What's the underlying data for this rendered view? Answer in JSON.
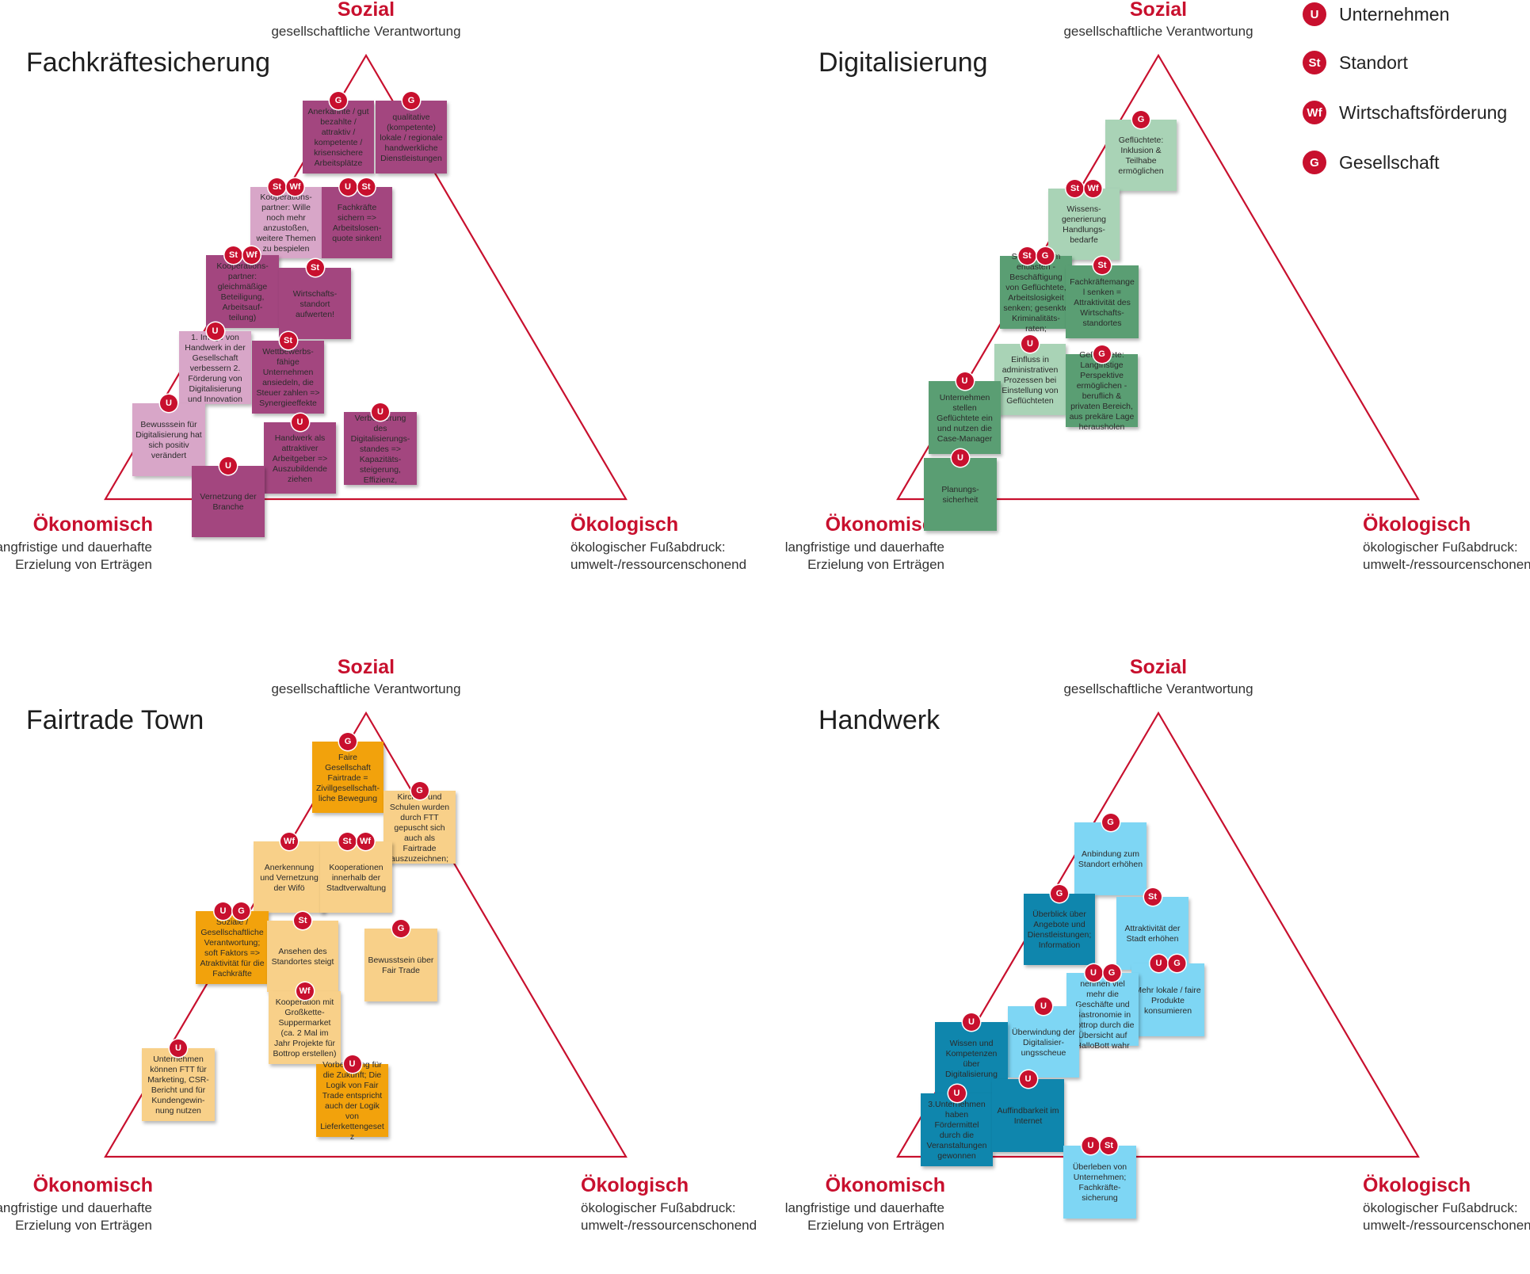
{
  "corners": {
    "top_title": "Sozial",
    "top_sub": "gesellschaftliche Verantwortung",
    "left_title": "Ökonomisch",
    "left_sub1": "langfristige und dauerhafte",
    "left_sub2": "Erzielung von Erträgen",
    "right_title": "Ökologisch",
    "right_sub1": "ökologischer Fußabdruck:",
    "right_sub2": "umwelt-/ressourcenschonend"
  },
  "legend": [
    {
      "code": "U",
      "label": "Unternehmen"
    },
    {
      "code": "St",
      "label": "Standort"
    },
    {
      "code": "Wf",
      "label": "Wirtschaftsförderung"
    },
    {
      "code": "G",
      "label": "Gesellschaft"
    }
  ],
  "colors": {
    "accent_red": "#c8102e",
    "purple_dark": "#a3467f",
    "purple_light": "#d8a6c8",
    "green_dark": "#5a9e73",
    "green_light": "#a9d3b6",
    "orange_dark": "#f2a20c",
    "orange_light": "#f8d089",
    "blue_dark": "#0f86ad",
    "blue_light": "#7ed6f4"
  },
  "panels": [
    {
      "title": "Fachkräftesicherung",
      "notes": [
        {
          "text": "Anerkannte / gut bezahlte / attraktiv / kompetente / krisensichere Arbeitsplätze",
          "badges": [
            "G"
          ],
          "tone": "dark"
        },
        {
          "text": "qualitative (kompetente) lokale / regionale handwerkliche Dienstleistungen",
          "badges": [
            "G"
          ],
          "tone": "dark"
        },
        {
          "text": "Kooperations-partner: Wille noch mehr anzustoßen, weitere Themen zu bespielen",
          "badges": [
            "St",
            "Wf"
          ],
          "tone": "light"
        },
        {
          "text": "Fachkräfte sichern => Arbeitslosen-quote sinken!",
          "badges": [
            "U",
            "St"
          ],
          "tone": "dark"
        },
        {
          "text": "Kooperations-partner: gleichmäßige Beteiligung, Arbeitsauf-teilung)",
          "badges": [
            "St",
            "Wf"
          ],
          "tone": "dark"
        },
        {
          "text": "Wirtschafts-standort aufwerten!",
          "badges": [
            "St"
          ],
          "tone": "dark"
        },
        {
          "text": "1. Image von Handwerk in der Gesellschaft verbessern 2. Förderung von Digitalisierung und Innovation",
          "badges": [
            "U"
          ],
          "tone": "light"
        },
        {
          "text": "Wettbewerbs-fähige Unternehmen ansiedeln, die Steuer zahlen => Synergieeffekte",
          "badges": [
            "St"
          ],
          "tone": "dark"
        },
        {
          "text": "Bewusssein für Digitalisierung hat sich positiv verändert",
          "badges": [
            "U"
          ],
          "tone": "light"
        },
        {
          "text": "Handwerk als attraktiver Arbeitgeber => Auszubildende ziehen",
          "badges": [
            "U"
          ],
          "tone": "dark"
        },
        {
          "text": "Verbesserung des Digitalisierungs-standes => Kapazitäts-steigerung, Effizienz,",
          "badges": [
            "U"
          ],
          "tone": "dark"
        },
        {
          "text": "Vernetzung der Branche",
          "badges": [
            "U"
          ],
          "tone": "dark"
        }
      ]
    },
    {
      "title": "Digitalisierung",
      "notes": [
        {
          "text": "Geflüchtete: Inklusion & Teilhabe ermöglichen",
          "badges": [
            "G"
          ],
          "tone": "light"
        },
        {
          "text": "Wissens-generierung Handlungs-bedarfe",
          "badges": [
            "St",
            "Wf"
          ],
          "tone": "light"
        },
        {
          "text": "Sozialsystem entlasten - Beschäftigung von Geflüchtete, Arbeitslosigkeit senken; gesenkte Kriminalitäts-raten;",
          "badges": [
            "St",
            "G"
          ],
          "tone": "dark"
        },
        {
          "text": "Fachkräftemangel senken = Attraktivität des Wirtschafts-standortes",
          "badges": [
            "St"
          ],
          "tone": "dark"
        },
        {
          "text": "Einfluss in administrativen Prozessen bei Einstellung von Geflüchteten",
          "badges": [
            "U"
          ],
          "tone": "light"
        },
        {
          "text": "Geflüchtete: Langfristige Perspektive ermöglichen - beruflich & privaten Bereich, aus prekäre Lage herausholen",
          "badges": [
            "G"
          ],
          "tone": "dark"
        },
        {
          "text": "Unternehmen stellen Geflüchtete ein und nutzen die Case-Manager",
          "badges": [
            "U"
          ],
          "tone": "dark"
        },
        {
          "text": "Planungs-sicherheit",
          "badges": [
            "U"
          ],
          "tone": "dark"
        }
      ]
    },
    {
      "title": "Fairtrade Town",
      "notes": [
        {
          "text": "Faire Gesellschaft Fairtrade = Zivillgesellschaft-liche Bewegung",
          "badges": [
            "G"
          ],
          "tone": "dark"
        },
        {
          "text": "Kirchen und Schulen wurden durch FTT gepuscht sich auch als Fairtrade auszuzeichnen;",
          "badges": [
            "G"
          ],
          "tone": "light"
        },
        {
          "text": "Anerkennung und Vernetzung der Wifö",
          "badges": [
            "Wf"
          ],
          "tone": "light"
        },
        {
          "text": "Kooperationen innerhalb der Stadtverwaltung",
          "badges": [
            "St",
            "Wf"
          ],
          "tone": "light"
        },
        {
          "text": "Soziale / Gesellschaftliche Verantwortung; soft Faktors => Atraktivität für die Fachkräfte",
          "badges": [
            "U",
            "G"
          ],
          "tone": "dark"
        },
        {
          "text": "Ansehen des Standortes steigt",
          "badges": [
            "St"
          ],
          "tone": "light"
        },
        {
          "text": "Bewusstsein über Fair Trade",
          "badges": [
            "G"
          ],
          "tone": "light"
        },
        {
          "text": "Kooperation mit Großkette-Suppermarket (ca. 2 Mal im Jahr Projekte für Bottrop erstellen)",
          "badges": [
            "Wf"
          ],
          "tone": "light"
        },
        {
          "text": "Unternehmen können FTT für Marketing, CSR-Bericht und für Kundengewin-nung nutzen",
          "badges": [
            "U"
          ],
          "tone": "light"
        },
        {
          "text": "Vorbereitung für die Zukunft; Die Logik von Fair Trade entspricht auch der Logik von Lieferkettengesetz",
          "badges": [
            "U"
          ],
          "tone": "dark"
        }
      ]
    },
    {
      "title": "Handwerk",
      "notes": [
        {
          "text": "Anbindung zum Standort erhöhen",
          "badges": [
            "G"
          ],
          "tone": "light"
        },
        {
          "text": "Überblick über Angebote und Dienstleistungen; Information",
          "badges": [
            "G"
          ],
          "tone": "dark"
        },
        {
          "text": "Attraktivität der Stadt erhöhen",
          "badges": [
            "St"
          ],
          "tone": "light"
        },
        {
          "text": "Mehr lokale / faire Produkte konsumieren",
          "badges": [
            "U",
            "G"
          ],
          "tone": "light"
        },
        {
          "text": "Bottroper nehmen viel mehr die Geschäfte und Gastronomie in Bottrop durch die Übersicht auf HalloBott wahr",
          "badges": [
            "U",
            "G"
          ],
          "tone": "light"
        },
        {
          "text": "Überwindung der Digitalisier-ungsscheue",
          "badges": [
            "U"
          ],
          "tone": "light"
        },
        {
          "text": "Wissen und Kompetenzen über Digitalisierung",
          "badges": [
            "U"
          ],
          "tone": "dark"
        },
        {
          "text": "3.Unternehmen haben Fördermittel durch die Veranstaltungen gewonnen",
          "badges": [
            "U"
          ],
          "tone": "dark"
        },
        {
          "text": "Auffindbarkeit im Internet",
          "badges": [
            "U"
          ],
          "tone": "dark"
        },
        {
          "text": "Überleben von Unternehmen; Fachkräfte-sicherung",
          "badges": [
            "U",
            "St"
          ],
          "tone": "light"
        }
      ]
    }
  ]
}
